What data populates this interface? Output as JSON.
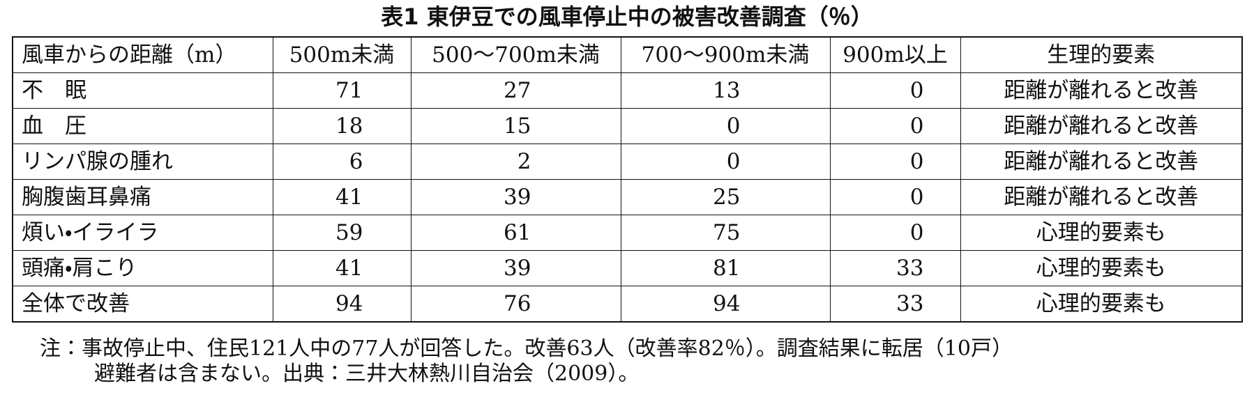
{
  "title": "表1 東伊豆での風車停止中の被害改善調査（％）",
  "table": {
    "header": [
      "風車からの距離（m）",
      "500m未満",
      "500～700m未満",
      "700～900m未満",
      "900m以上",
      "生理的要素"
    ],
    "rows": [
      [
        "不　眠",
        71,
        27,
        13,
        0,
        "距離が離れると改善"
      ],
      [
        "血　圧",
        18,
        15,
        0,
        0,
        "距離が離れると改善"
      ],
      [
        "リンパ腺の腫れ",
        6,
        2,
        0,
        0,
        "距離が離れると改善"
      ],
      [
        "胸腹歯耳鼻痛",
        41,
        39,
        25,
        0,
        "距離が離れると改善"
      ],
      [
        "煩い・イライラ",
        59,
        61,
        75,
        0,
        "心理的要素も"
      ],
      [
        "頭痛・肩こり",
        41,
        39,
        81,
        33,
        "心理的要素も"
      ],
      [
        "全体で改善",
        94,
        76,
        94,
        33,
        "心理的要素も"
      ]
    ]
  },
  "notes": [
    "注：事故停止中、住民121人中の77人が回答した。改善63人（改善率82％）。調査結果に転居（10戸）",
    "避難者は含まない。出典：三井大林熱川自治会（2009）。"
  ]
}
